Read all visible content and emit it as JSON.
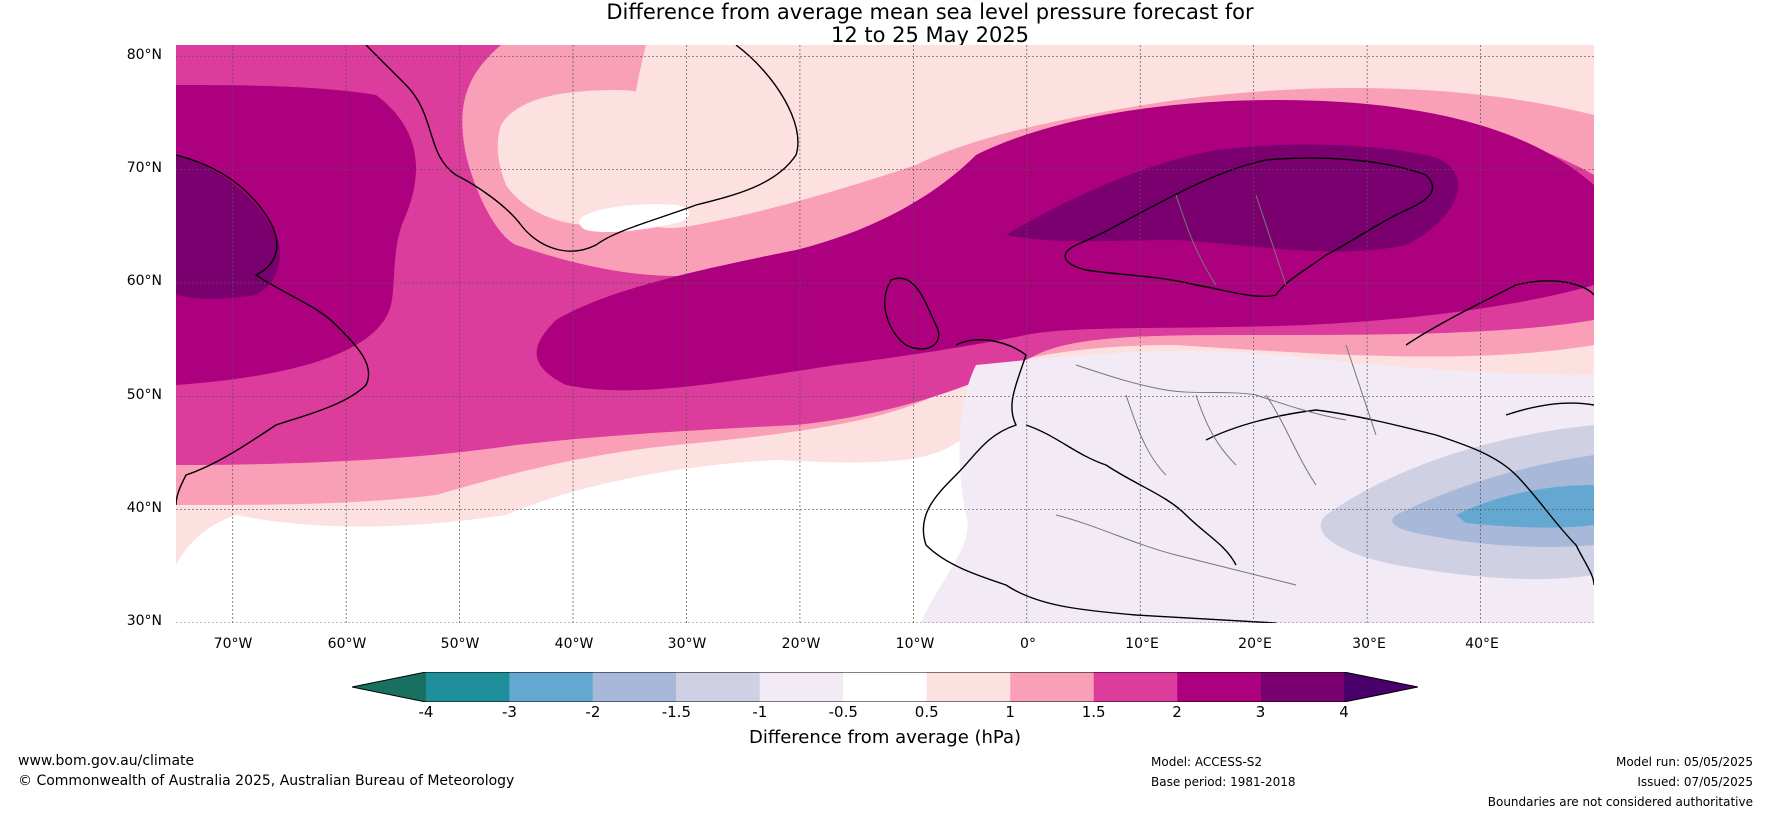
{
  "title": {
    "line1": "Difference from average mean sea level pressure forecast for",
    "line2": "12 to 25 May 2025"
  },
  "map": {
    "lat_labels": [
      "80°N",
      "70°N",
      "60°N",
      "50°N",
      "40°N",
      "30°N"
    ],
    "lon_labels": [
      "70°W",
      "60°W",
      "50°W",
      "40°W",
      "30°W",
      "20°W",
      "10°W",
      "0°",
      "10°E",
      "20°E",
      "30°E",
      "40°E"
    ],
    "lat_values": [
      80,
      70,
      60,
      50,
      40,
      30
    ],
    "lon_values": [
      -70,
      -60,
      -50,
      -40,
      -30,
      -20,
      -10,
      0,
      10,
      20,
      30,
      40
    ],
    "lon_range": [
      -75,
      50
    ],
    "lat_range": [
      30,
      81
    ],
    "gridlines": true
  },
  "colorbar": {
    "title": "Difference from average (hPa)",
    "tick_labels": [
      "-4",
      "-3",
      "-2",
      "-1.5",
      "-1",
      "-0.5",
      "0.5",
      "1",
      "1.5",
      "2",
      "3",
      "4"
    ],
    "colors": [
      "#1a7060",
      "#1e8e9a",
      "#64a8d2",
      "#a8b8d8",
      "#d0d0e4",
      "#f2eaf4",
      "#ffffff",
      "#fde0e0",
      "#f9a0b8",
      "#dc3c9c",
      "#ad007f",
      "#7a0070",
      "#4a006a"
    ],
    "extend": "both"
  },
  "footer": {
    "website": "www.bom.gov.au/climate",
    "copyright": "© Commonwealth of Australia 2025, Australian Bureau of Meteorology",
    "model": "Model: ACCESS-S2",
    "base_period": "Base period: 1981-2018",
    "model_run": "Model run: 05/05/2025",
    "issued": "Issued: 07/05/2025",
    "disclaimer": "Boundaries are not considered authoritative"
  }
}
